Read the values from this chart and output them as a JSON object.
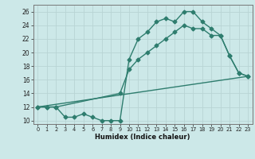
{
  "line1_x": [
    0,
    1,
    2,
    3,
    4,
    5,
    6,
    7,
    8,
    9,
    10,
    11,
    12,
    13,
    14,
    15,
    16,
    17,
    18,
    19,
    20,
    21,
    22,
    23
  ],
  "line1_y": [
    12,
    12,
    12,
    10.5,
    10.5,
    11,
    10.5,
    10,
    10,
    10,
    19,
    22,
    23,
    24.5,
    25,
    24.5,
    26,
    26,
    24.5,
    23.5,
    22.5,
    19.5,
    17,
    16.5
  ],
  "line2_x": [
    0,
    23
  ],
  "line2_y": [
    12,
    16.5
  ],
  "line3_x": [
    0,
    1,
    2,
    9,
    10,
    11,
    12,
    13,
    14,
    15,
    16,
    17,
    18,
    19,
    20,
    21,
    22,
    23
  ],
  "line3_y": [
    12,
    12,
    12,
    14,
    17.5,
    19,
    20,
    21,
    22,
    23,
    24,
    23.5,
    23.5,
    22.5,
    22.5,
    19.5,
    17,
    16.5
  ],
  "color": "#2e7d6e",
  "bg_color": "#cce8e8",
  "grid_color": "#b8d4d4",
  "xlabel": "Humidex (Indice chaleur)",
  "xlim": [
    -0.5,
    23.5
  ],
  "ylim": [
    9.5,
    27
  ],
  "xticks": [
    0,
    1,
    2,
    3,
    4,
    5,
    6,
    7,
    8,
    9,
    10,
    11,
    12,
    13,
    14,
    15,
    16,
    17,
    18,
    19,
    20,
    21,
    22,
    23
  ],
  "yticks": [
    10,
    12,
    14,
    16,
    18,
    20,
    22,
    24,
    26
  ],
  "marker": "D",
  "markersize": 2.5,
  "linewidth": 1.0
}
